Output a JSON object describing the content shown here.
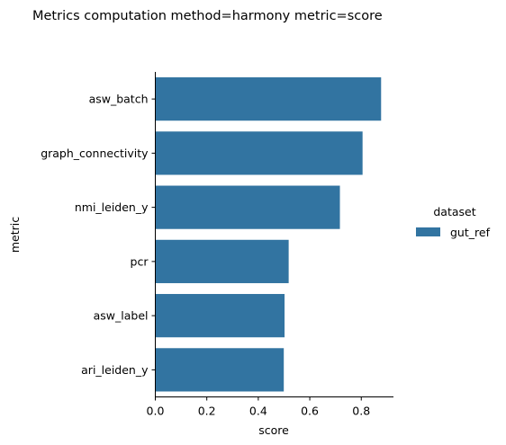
{
  "chart_data": {
    "type": "bar",
    "orientation": "horizontal",
    "title": "Metrics computation method=harmony metric=score",
    "xlabel": "score",
    "ylabel": "metric",
    "categories": [
      "asw_batch",
      "graph_connectivity",
      "nmi_leiden_y",
      "pcr",
      "asw_label",
      "ari_leiden_y"
    ],
    "series": [
      {
        "name": "gut_ref",
        "values": [
          0.877,
          0.805,
          0.717,
          0.518,
          0.502,
          0.499
        ]
      }
    ],
    "xlim": [
      0,
      0.925
    ],
    "xticks": [
      0.0,
      0.2,
      0.4,
      0.6,
      0.8
    ],
    "xtick_labels": [
      "0.0",
      "0.2",
      "0.4",
      "0.6",
      "0.8"
    ],
    "grid": false,
    "legend": {
      "title": "dataset",
      "placement": "right",
      "entries": [
        "gut_ref"
      ]
    },
    "bar_color": "#3274a1"
  }
}
